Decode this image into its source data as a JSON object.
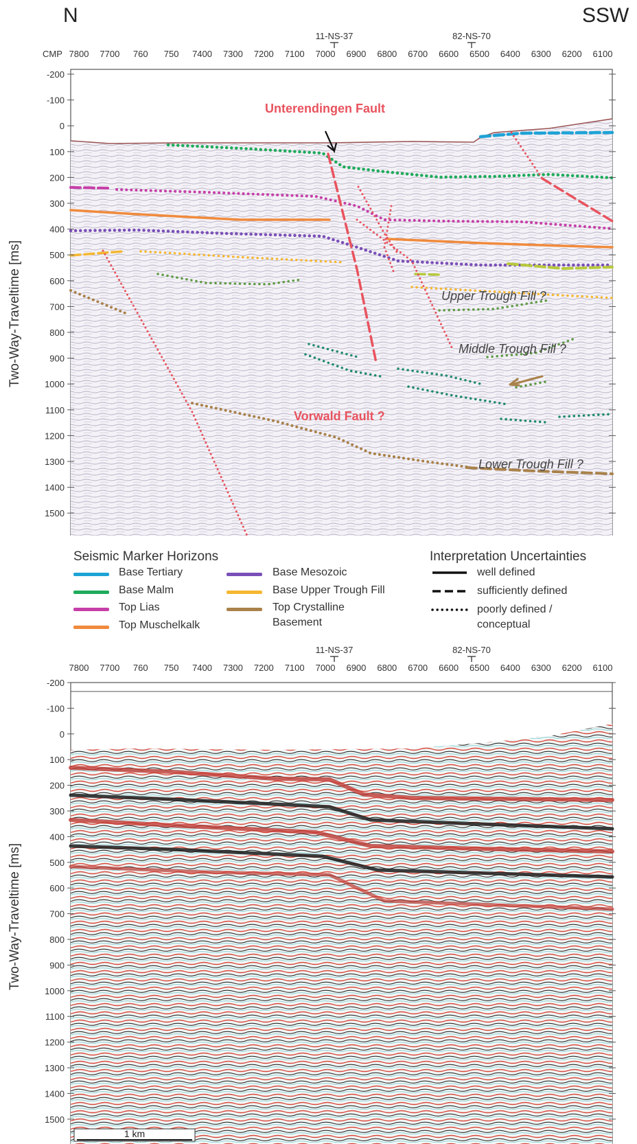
{
  "directions": {
    "left": "N",
    "right": "SSW"
  },
  "cmp_prefix": "CMP",
  "cmp_ticks": [
    "7800",
    "7700",
    "760",
    "750",
    "7400",
    "7300",
    "7200",
    "7100",
    "7000",
    "6900",
    "6800",
    "6700",
    "6600",
    "6500",
    "6400",
    "6300",
    "6200",
    "6100"
  ],
  "wells": [
    {
      "label": "11-NS-37"
    },
    {
      "label": "82-NS-70"
    }
  ],
  "y_axis_label": "Two-Way-Traveltime [ms]",
  "y_ticks": [
    "-200",
    "-100",
    "0",
    "100",
    "200",
    "300",
    "400",
    "500",
    "600",
    "700",
    "800",
    "900",
    "1000",
    "1100",
    "1200",
    "1300",
    "1400",
    "1500"
  ],
  "annotations": {
    "unterendingen": "Unterendingen Fault",
    "vorwald": "Vorwald Fault ?",
    "upper": "Upper Trough Fill ?",
    "middle": "Middle Trough Fill ?",
    "lower": "Lower Trough Fill ?"
  },
  "legend": {
    "horizons_title": "Seismic Marker Horizons",
    "horizons": [
      {
        "label": "Base Tertiary",
        "color": "#1ea3d6"
      },
      {
        "label": "Base Malm",
        "color": "#1fab5b"
      },
      {
        "label": "Top Lias",
        "color": "#c63fa8"
      },
      {
        "label": "Top Muschelkalk",
        "color": "#f08a3c"
      },
      {
        "label": "Base Mesozoic",
        "color": "#7b4fb8"
      },
      {
        "label": "Base Upper Trough Fill",
        "color": "#f5b731"
      },
      {
        "label": "Top Crystalline",
        "label2": "Basement",
        "color": "#a9814a"
      }
    ],
    "uncertainty_title": "Interpretation Uncertainties",
    "uncertainties": [
      {
        "label": "well defined",
        "style": "solid"
      },
      {
        "label": "sufficiently defined",
        "style": "dashed"
      },
      {
        "label": "poorly defined /",
        "label2": "conceptual",
        "style": "dotted"
      }
    ]
  },
  "scale_bar": "1 km",
  "colors": {
    "fault": "#e8535e",
    "surface": "#9b5555",
    "annotation_fault": "#e8535e",
    "annotation_fill": "#444444"
  }
}
